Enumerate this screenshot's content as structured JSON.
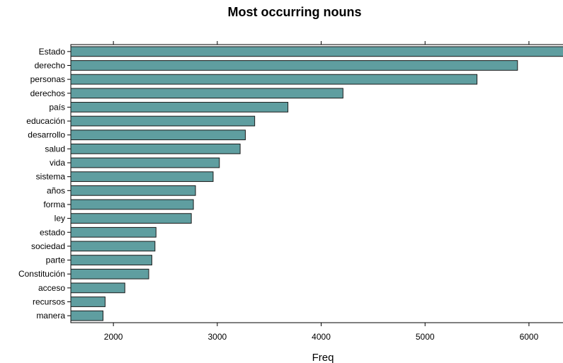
{
  "chart_data": {
    "type": "bar",
    "orientation": "horizontal",
    "title": "Most occurring nouns",
    "xlabel": "Freq",
    "ylabel": "",
    "xlim": [
      1590,
      6580
    ],
    "xticks": [
      2000,
      3000,
      4000,
      5000,
      6000
    ],
    "grid": false,
    "categories": [
      "Estado",
      "derecho",
      "personas",
      "derechos",
      "país",
      "educación",
      "desarrollo",
      "salud",
      "vida",
      "sistema",
      "años",
      "forma",
      "ley",
      "estado",
      "sociedad",
      "parte",
      "Constitución",
      "acceso",
      "recursos",
      "manera"
    ],
    "values": [
      6380,
      5890,
      5500,
      4210,
      3680,
      3360,
      3270,
      3220,
      3020,
      2960,
      2790,
      2770,
      2750,
      2410,
      2400,
      2370,
      2340,
      2110,
      1920,
      1900
    ],
    "colors": {
      "bar_fill": "#5f9ea0",
      "bar_stroke": "#1a1a1a",
      "axis": "#000000"
    }
  }
}
